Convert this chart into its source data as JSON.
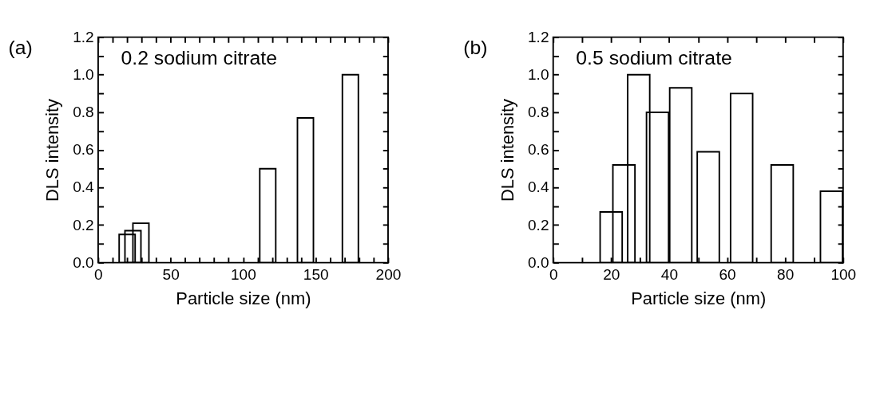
{
  "chart_data": [
    {
      "type": "bar",
      "xlabel": "Particle size (nm)",
      "ylabel": "DLS intensity",
      "annotations": [
        "(a)",
        "0.2 sodium citrate"
      ],
      "x": [
        20,
        24,
        29.5,
        117,
        143,
        174
      ],
      "series": [
        {
          "color": "#000000",
          "values": [
            0.15,
            0.17,
            0.21,
            0.5,
            0.77,
            1.0
          ]
        }
      ],
      "xlim": [
        0,
        200
      ],
      "ylim": [
        0,
        1.2
      ],
      "xticks": [
        0,
        {
          "value": 10,
          "label": null
        },
        {
          "value": 20,
          "label": null
        },
        {
          "value": 30,
          "label": null
        },
        {
          "value": 40,
          "label": null
        },
        50,
        {
          "value": 60,
          "label": null
        },
        {
          "value": 70,
          "label": null
        },
        {
          "value": 80,
          "label": null
        },
        {
          "value": 90,
          "label": null
        },
        100,
        {
          "value": 110,
          "label": null
        },
        {
          "value": 120,
          "label": null
        },
        {
          "value": 130,
          "label": null
        },
        {
          "value": 140,
          "label": null
        },
        150,
        {
          "value": 160,
          "label": null
        },
        {
          "value": 170,
          "label": null
        },
        {
          "value": 180,
          "label": null
        },
        {
          "value": 190,
          "label": null
        },
        200
      ],
      "yticks": [
        {
          "value": 0,
          "label": "0.0"
        },
        {
          "value": 0.1,
          "label": null
        },
        {
          "value": 0.2,
          "label": "0.2"
        },
        {
          "value": 0.3,
          "label": null
        },
        {
          "value": 0.4,
          "label": "0.4"
        },
        {
          "value": 0.5,
          "label": null
        },
        {
          "value": 0.6,
          "label": "0.6"
        },
        {
          "value": 0.7,
          "label": null
        },
        {
          "value": 0.8,
          "label": "0.8"
        },
        {
          "value": 0.9,
          "label": null
        },
        {
          "value": 1.0,
          "label": "1.0"
        },
        {
          "value": 1.1,
          "label": null
        },
        {
          "value": 1.2,
          "label": "1.2"
        }
      ],
      "grid": false,
      "legend": false
    },
    {
      "type": "bar",
      "xlabel": "Particle size (nm)",
      "ylabel": "DLS intensity",
      "annotations": [
        "(b)",
        "0.5 sodium citrate"
      ],
      "x": [
        20,
        24.4,
        29.5,
        36,
        44,
        53.5,
        65,
        79,
        96
      ],
      "series": [
        {
          "color": "#000000",
          "values": [
            0.27,
            0.52,
            1.0,
            0.8,
            0.93,
            0.59,
            0.9,
            0.52,
            0.38
          ]
        }
      ],
      "xlim": [
        0,
        100
      ],
      "ylim": [
        0,
        1.2
      ],
      "xticks": [
        0,
        {
          "value": 10,
          "label": null
        },
        20,
        {
          "value": 30,
          "label": null
        },
        40,
        {
          "value": 50,
          "label": null
        },
        60,
        {
          "value": 70,
          "label": null
        },
        80,
        {
          "value": 90,
          "label": null
        },
        100
      ],
      "yticks": [
        {
          "value": 0,
          "label": "0.0"
        },
        {
          "value": 0.1,
          "label": null
        },
        {
          "value": 0.2,
          "label": "0.2"
        },
        {
          "value": 0.3,
          "label": null
        },
        {
          "value": 0.4,
          "label": "0.4"
        },
        {
          "value": 0.5,
          "label": null
        },
        {
          "value": 0.6,
          "label": "0.6"
        },
        {
          "value": 0.7,
          "label": null
        },
        {
          "value": 0.8,
          "label": "0.8"
        },
        {
          "value": 0.9,
          "label": null
        },
        {
          "value": 1.0,
          "label": "1.0"
        },
        {
          "value": 1.1,
          "label": null
        },
        {
          "value": 1.2,
          "label": "1.2"
        }
      ],
      "grid": false,
      "legend": false
    }
  ]
}
